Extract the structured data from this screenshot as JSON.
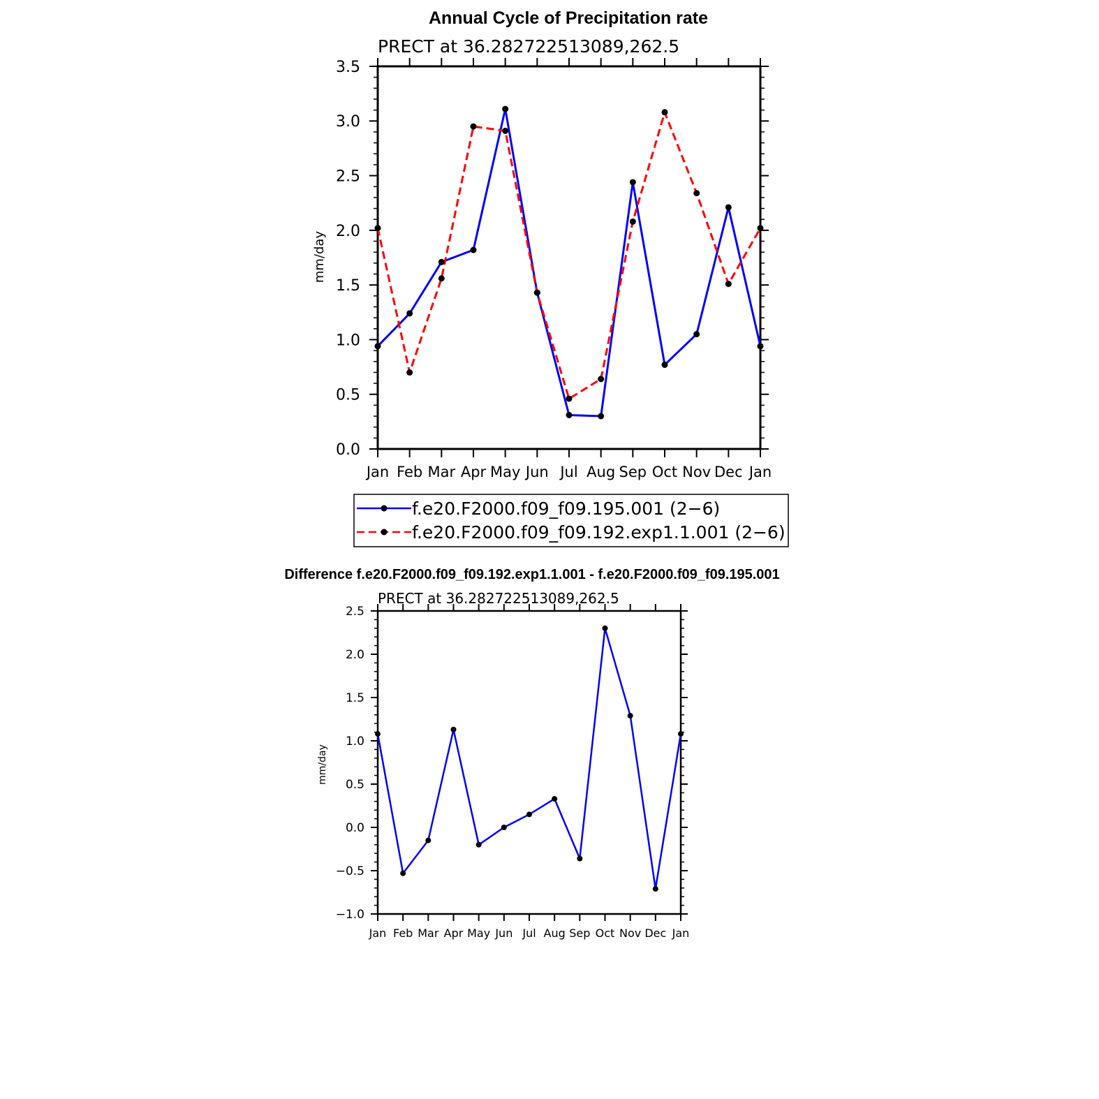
{
  "colors": {
    "series1": "#0000ff",
    "series2": "#ff0000",
    "marker": "#000000",
    "axis": "#000000"
  },
  "chart_data": [
    {
      "type": "line",
      "title": "Annual Cycle of Precipitation rate",
      "subtitle": "PRECT at 36.282722513089,262.5",
      "ylabel": "mm/day",
      "xlabel": "",
      "categories": [
        "Jan",
        "Feb",
        "Mar",
        "Apr",
        "May",
        "Jun",
        "Jul",
        "Aug",
        "Sep",
        "Oct",
        "Nov",
        "Dec",
        "Jan"
      ],
      "ylim": [
        0,
        3.5
      ],
      "yticks": [
        "0.0",
        "0.5",
        "1.0",
        "1.5",
        "2.0",
        "2.5",
        "3.0",
        "3.5"
      ],
      "series": [
        {
          "name": "f.e20.F2000.f09_f09.195.001 (2−6)",
          "style": "solid",
          "values": [
            0.94,
            1.24,
            1.71,
            1.82,
            3.11,
            1.43,
            0.31,
            0.3,
            2.44,
            0.77,
            1.05,
            2.21,
            0.94
          ]
        },
        {
          "name": "f.e20.F2000.f09_f09.192.exp1.1.001 (2−6)",
          "style": "dashed",
          "values": [
            2.02,
            0.7,
            1.56,
            2.95,
            2.91,
            1.43,
            0.46,
            0.64,
            2.08,
            3.08,
            2.34,
            1.51,
            2.02
          ]
        }
      ],
      "legend": "bottom"
    },
    {
      "type": "line",
      "title": "Difference f.e20.F2000.f09_f09.192.exp1.1.001 - f.e20.F2000.f09_f09.195.001",
      "subtitle": "PRECT at 36.282722513089,262.5",
      "ylabel": "mm/day",
      "xlabel": "",
      "categories": [
        "Jan",
        "Feb",
        "Mar",
        "Apr",
        "May",
        "Jun",
        "Jul",
        "Aug",
        "Sep",
        "Oct",
        "Nov",
        "Dec",
        "Jan"
      ],
      "ylim": [
        -1.0,
        2.5
      ],
      "yticks": [
        "−1.0",
        "−0.5",
        "0.0",
        "0.5",
        "1.0",
        "1.5",
        "2.0",
        "2.5"
      ],
      "series": [
        {
          "name": "Difference",
          "style": "solid",
          "values": [
            1.08,
            -0.53,
            -0.15,
            1.13,
            -0.2,
            0.0,
            0.15,
            0.33,
            -0.36,
            2.3,
            1.29,
            -0.71,
            1.08
          ]
        }
      ]
    }
  ]
}
